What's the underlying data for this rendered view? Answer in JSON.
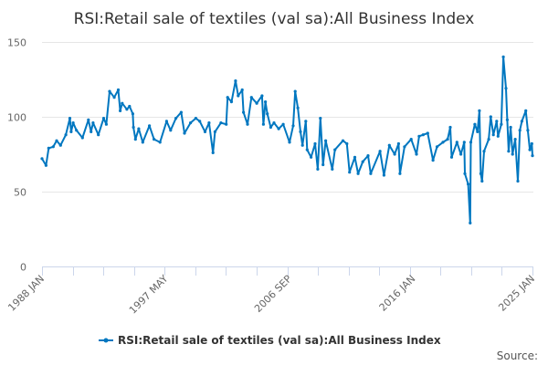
{
  "chart_data": {
    "type": "line",
    "title": "RSI:Retail sale of textiles (val sa):All Business Index",
    "xlabel": "",
    "ylabel": "",
    "ylim": [
      0,
      150
    ],
    "xlim": [
      1988.0,
      2025.0
    ],
    "grid": true,
    "legend_position": "bottom-center",
    "y_ticks": [
      "0",
      "50",
      "100",
      "150"
    ],
    "y_tick_values": [
      0,
      50,
      100,
      150
    ],
    "x_tick_labels": [
      "1988 JAN",
      "1997 MAY",
      "2006 SEP",
      "2016 JAN",
      "2025 JAN"
    ],
    "x_tick_values": [
      1988.0,
      1997.33,
      2006.67,
      2016.0,
      2025.0
    ],
    "series": [
      {
        "name": "RSI:Retail sale of textiles (val sa):All Business Index",
        "color": "#0077c0",
        "x": [
          1988.0,
          1988.3,
          1988.5,
          1988.85,
          1989.1,
          1989.4,
          1989.8,
          1990.1,
          1990.2,
          1990.35,
          1990.6,
          1991.05,
          1991.5,
          1991.7,
          1991.85,
          1992.25,
          1992.65,
          1992.85,
          1993.1,
          1993.45,
          1993.75,
          1993.9,
          1994.05,
          1994.4,
          1994.6,
          1994.85,
          1994.9,
          1995.05,
          1995.3,
          1995.6,
          1996.1,
          1996.45,
          1996.9,
          1997.4,
          1997.7,
          1998.1,
          1998.5,
          1998.75,
          1999.2,
          1999.6,
          1999.9,
          2000.3,
          2000.6,
          2000.9,
          2001.05,
          2001.5,
          2001.9,
          2002.0,
          2002.3,
          2002.6,
          2002.8,
          2003.1,
          2003.2,
          2003.5,
          2003.8,
          2004.2,
          2004.6,
          2004.7,
          2004.85,
          2005.0,
          2005.25,
          2005.5,
          2005.85,
          2006.2,
          2006.67,
          2006.95,
          2007.1,
          2007.3,
          2007.5,
          2007.65,
          2007.9,
          2008.0,
          2008.3,
          2008.6,
          2008.8,
          2009.0,
          2009.2,
          2009.4,
          2009.9,
          2010.1,
          2010.7,
          2011.0,
          2011.2,
          2011.6,
          2011.85,
          2012.2,
          2012.6,
          2012.8,
          2013.5,
          2013.8,
          2014.2,
          2014.6,
          2014.9,
          2015.0,
          2015.35,
          2015.85,
          2016.25,
          2016.45,
          2016.75,
          2017.1,
          2017.5,
          2017.8,
          2018.25,
          2018.6,
          2018.8,
          2018.9,
          2019.3,
          2019.6,
          2019.85,
          2019.9,
          2020.15,
          2020.3,
          2020.35,
          2020.65,
          2020.85,
          2021.0,
          2021.1,
          2021.2,
          2021.35,
          2021.7,
          2021.85,
          2022.05,
          2022.3,
          2022.4,
          2022.65,
          2022.8,
          2023.0,
          2023.1,
          2023.2,
          2023.35,
          2023.5,
          2023.7,
          2023.9,
          2024.05,
          2024.2,
          2024.5,
          2024.65,
          2024.8,
          2024.95,
          2025.0
        ],
        "values": [
          72,
          67.5,
          79,
          80,
          84,
          81,
          88,
          99,
          90,
          96,
          91,
          86,
          98,
          90,
          96,
          88,
          99,
          95,
          117,
          113,
          118,
          104,
          109,
          105,
          107,
          102,
          93,
          85,
          92,
          83,
          94,
          85,
          83,
          97,
          91,
          99,
          103,
          89,
          96,
          99,
          97,
          90,
          96,
          76,
          90,
          96,
          95,
          113,
          110,
          124,
          114,
          118,
          103,
          95,
          113,
          109,
          114,
          95,
          110,
          102,
          93,
          96,
          92,
          95,
          83,
          94,
          117,
          106,
          90,
          81,
          97,
          78,
          73,
          82,
          65,
          99,
          68,
          84,
          65,
          78,
          84,
          82,
          63,
          73,
          62,
          70,
          74,
          62,
          77,
          61,
          81,
          75,
          82,
          62,
          80,
          85,
          75,
          87,
          88,
          89,
          71,
          80,
          83,
          85,
          93,
          73,
          83,
          75,
          83,
          62,
          55,
          29,
          83,
          95,
          90,
          104,
          62,
          57,
          77,
          85,
          100,
          88,
          97,
          87,
          95,
          140,
          119,
          98,
          77,
          93,
          75,
          85,
          57,
          91,
          97,
          104,
          91,
          78,
          82,
          74
        ]
      }
    ],
    "source_label": "Source:"
  }
}
